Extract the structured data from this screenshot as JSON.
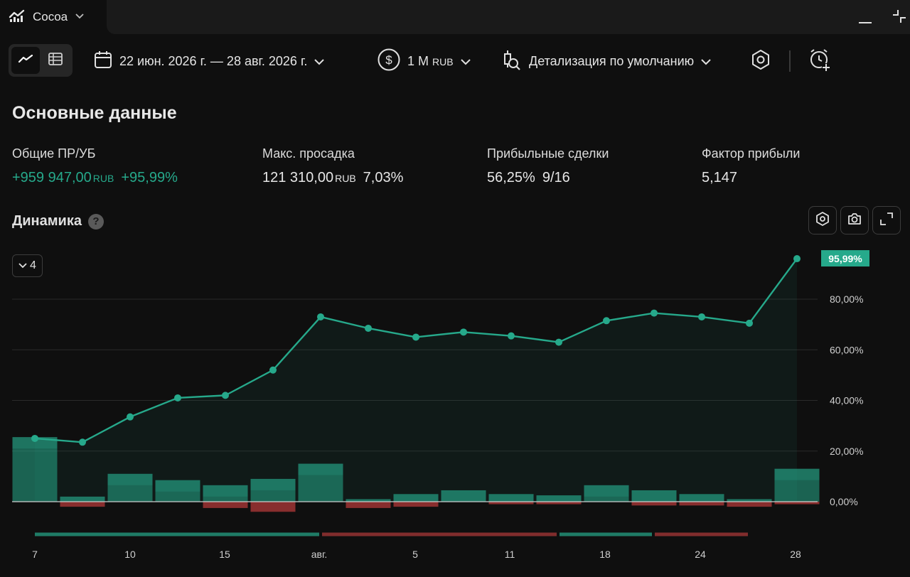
{
  "app": {
    "tab_title": "Cocoa"
  },
  "toolbar": {
    "date_range": "22 июн. 2026 г. — 28 авг. 2026 г.",
    "capital_amount": "1 M",
    "capital_currency": "RUB",
    "detail_label": "Детализация по умолчанию"
  },
  "summary": {
    "title": "Основные данные",
    "total_pnl": {
      "label": "Общие ПР/УБ",
      "amount": "+959 947,00",
      "currency": "RUB",
      "percent": "+95,99%"
    },
    "max_drawdown": {
      "label": "Макс. просадка",
      "amount": "121 310,00",
      "currency": "RUB",
      "percent": "7,03%"
    },
    "profitable_trades": {
      "label": "Прибыльные сделки",
      "percent": "56,25%",
      "ratio": "9/16"
    },
    "profit_factor": {
      "label": "Фактор прибыли",
      "value": "5,147"
    }
  },
  "chart_header": {
    "title": "Динамика",
    "help": "?",
    "collapse_count": "4"
  },
  "colors": {
    "background": "#0f0f0f",
    "accent_green": "#26a98b",
    "loss_red": "#b23a3a",
    "grid": "#2a2a2a"
  },
  "chart_data": {
    "type": "line",
    "x_tick_labels": [
      "7",
      "10",
      "15",
      "авг.",
      "5",
      "11",
      "18",
      "24",
      "28"
    ],
    "y_tick_labels": [
      "0,00%",
      "20,00%",
      "40,00%",
      "60,00%",
      "80,00%"
    ],
    "ylim": [
      0,
      95.99
    ],
    "grid": true,
    "last_value_label": "95,99%",
    "series": [
      {
        "values": [
          25,
          23.5,
          33.5,
          41,
          42,
          52,
          73,
          68.5,
          65,
          67,
          65.5,
          63,
          71.5,
          74.5,
          73,
          70.5,
          95.99
        ]
      }
    ],
    "bars_positive": [
      25.5,
      2,
      11,
      8.5,
      6.5,
      9,
      15,
      1,
      3,
      4.5,
      3,
      2.5,
      6.5,
      4.5,
      3,
      1,
      13
    ],
    "bars_negative": [
      0,
      2,
      0,
      0,
      2.5,
      4,
      0,
      2.5,
      2,
      0,
      1,
      1,
      0,
      1.5,
      1.5,
      2,
      1
    ],
    "period_segments": [
      "win",
      "loss",
      "win",
      "loss"
    ]
  }
}
